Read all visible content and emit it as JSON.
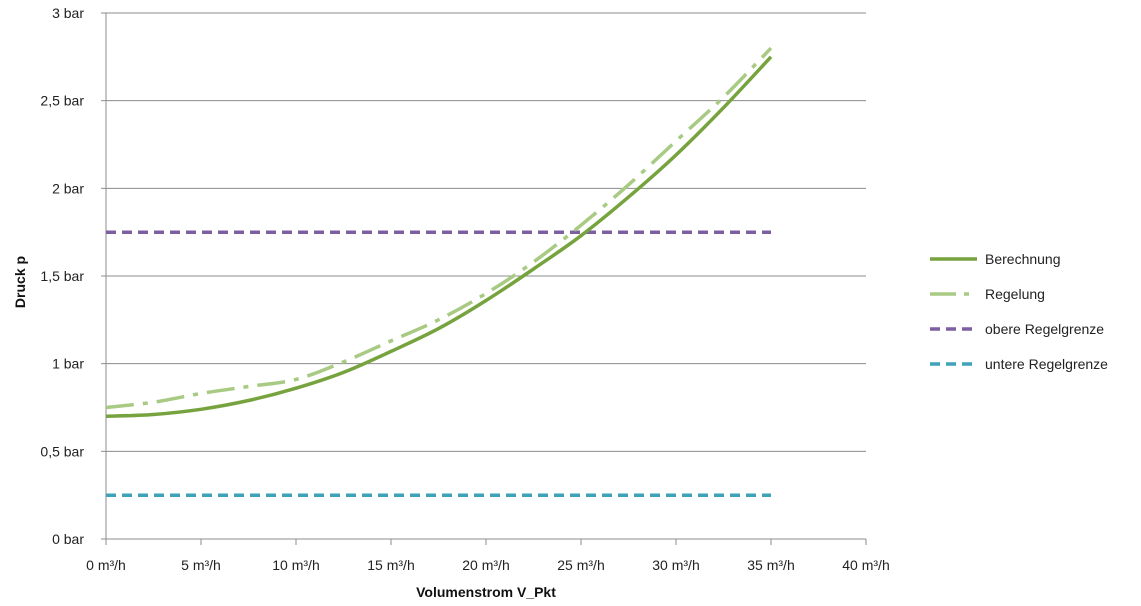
{
  "chart_data": {
    "type": "line",
    "xlabel": "Volumenstrom V_Pkt",
    "ylabel": "Druck p",
    "xlim": [
      0,
      40
    ],
    "ylim": [
      0,
      3
    ],
    "x_ticks": [
      0,
      5,
      10,
      15,
      20,
      25,
      30,
      35,
      40
    ],
    "x_tick_labels": [
      "0 m³/h",
      "5 m³/h",
      "10 m³/h",
      "15 m³/h",
      "20 m³/h",
      "25 m³/h",
      "30 m³/h",
      "35 m³/h",
      "40 m³/h"
    ],
    "y_ticks": [
      0,
      0.5,
      1,
      1.5,
      2,
      2.5,
      3
    ],
    "y_tick_labels": [
      "0 bar",
      "0,5 bar",
      "1 bar",
      "1,5 bar",
      "2 bar",
      "2,5 bar",
      "3 bar"
    ],
    "grid": "horizontal",
    "legend_position": "right",
    "series": [
      {
        "name": "Berechnung",
        "color": "#77a33f",
        "style": "solid",
        "x": [
          0,
          2.5,
          5,
          7.5,
          10,
          12.5,
          15,
          17.5,
          20,
          22.5,
          25,
          27.5,
          30,
          32.5,
          35
        ],
        "y": [
          0.7,
          0.71,
          0.74,
          0.79,
          0.86,
          0.95,
          1.07,
          1.2,
          1.36,
          1.54,
          1.73,
          1.95,
          2.19,
          2.46,
          2.75
        ]
      },
      {
        "name": "Regelung",
        "color": "#a8ca83",
        "style": "dashdot",
        "x": [
          0,
          2.5,
          5,
          7.5,
          10,
          12.5,
          15,
          17.5,
          20,
          22.5,
          25,
          27.5,
          30,
          32.5,
          35
        ],
        "y": [
          0.75,
          0.78,
          0.83,
          0.87,
          0.91,
          1.01,
          1.13,
          1.25,
          1.4,
          1.58,
          1.79,
          2.02,
          2.27,
          2.52,
          2.8
        ]
      },
      {
        "name": "obere Regelgrenze",
        "color": "#7b5fa0",
        "style": "dashed",
        "x": [
          0,
          35
        ],
        "y": [
          1.75,
          1.75
        ]
      },
      {
        "name": "untere Regelgrenze",
        "color": "#3ea2b8",
        "style": "dashed",
        "x": [
          0,
          35
        ],
        "y": [
          0.25,
          0.25
        ]
      }
    ]
  }
}
